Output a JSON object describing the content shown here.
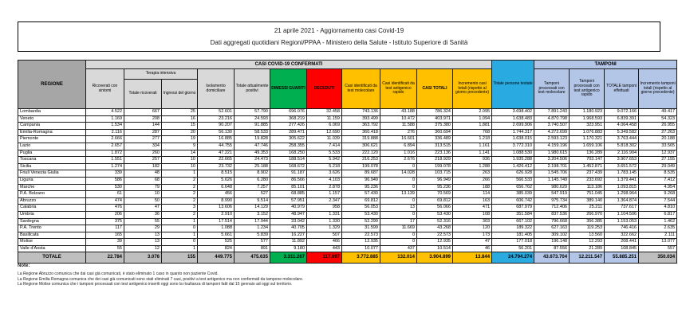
{
  "title": {
    "line1": "21 aprile 2021 - Aggiornamento casi Covid-19",
    "line2": "Dati aggregati quotidiani Regioni/PPAA - Ministero della Salute - Istituto Superiore di Sanità"
  },
  "colors": {
    "green": "#00B050",
    "red": "#FF0000",
    "yellow": "#FFC000",
    "blue": "#29ABE2",
    "periwinkle": "#B4C6E7",
    "header_gray": "#D9D9D9",
    "regione_gray": "#A6A6A6",
    "total_row_gray": "#BFBFBF"
  },
  "table": {
    "headers": {
      "regione": "REGIONE",
      "casi_band": "CASI COVID-19 CONFERMATI",
      "tamponi_band": "TAMPONI",
      "ricoverati": "Ricoverati con sintomi",
      "terapia_band": "Terapia intensiva",
      "terapia_totale": "Totale ricoverati",
      "terapia_ingressi": "Ingressi del giorno",
      "isolamento": "Isolamento domiciliare",
      "positivi": "Totale attualmente positivi",
      "guariti": "DIMESSI GUARITI",
      "deceduti": "DECEDUTI",
      "casi_molecolare": "Casi identificati da test molecolare",
      "casi_antigenico": "Casi identificati da test antigenico rapido",
      "casi_totali": "CASI TOTALI",
      "incremento_casi": "Incremento casi totali (rispetto al giorno precedente)",
      "persone_testate": "Totale persone testate",
      "tamponi_molecolare": "Tamponi processati con test molecolare",
      "tamponi_antigenico": "Tamponi processati con test antigenico rapido",
      "tamponi_totale": "TOTALE tamponi effettuati",
      "incremento_tamponi": "Incremento tamponi totali (rispetto al giorno precedente)"
    },
    "rows": [
      [
        "Lombardia",
        "4.522",
        "667",
        "25",
        "52.601",
        "57.790",
        "696.076",
        "32.458",
        "743.136",
        "43.188",
        "786.324",
        "2.095",
        "3.698.402",
        "7.891.243",
        "1.180.923",
        "9.072.166",
        "49.417"
      ],
      [
        "Veneto",
        "1.169",
        "208",
        "16",
        "23.216",
        "24.593",
        "368.219",
        "11.159",
        "393.499",
        "10.472",
        "403.971",
        "1.094",
        "1.638.483",
        "4.870.798",
        "1.968.593",
        "6.839.391",
        "54.323"
      ],
      [
        "Campania",
        "1.534",
        "144",
        "15",
        "90.207",
        "91.885",
        "277.426",
        "6.069",
        "363.792",
        "11.588",
        "375.380",
        "1.881",
        "2.699.906",
        "3.740.507",
        "323.951",
        "4.064.458",
        "26.955"
      ],
      [
        "Emilia-Romagna",
        "2.116",
        "287",
        "20",
        "56.130",
        "58.533",
        "289.471",
        "12.690",
        "360.418",
        "276",
        "360.694",
        "768",
        "1.744.317",
        "4.272.699",
        "1.076.883",
        "5.349.582",
        "27.263"
      ],
      [
        "Piemonte",
        "2.666",
        "277",
        "19",
        "16.885",
        "19.828",
        "305.622",
        "11.039",
        "319.888",
        "16.601",
        "336.489",
        "1.218",
        "1.638.015",
        "2.593.123",
        "1.170.321",
        "3.763.444",
        "20.188"
      ],
      [
        "Lazio",
        "2.657",
        "334",
        "9",
        "44.755",
        "47.746",
        "258.355",
        "7.414",
        "306.621",
        "6.894",
        "313.515",
        "1.161",
        "3.772.310",
        "4.159.196",
        "1.659.106",
        "5.818.302",
        "33.565"
      ],
      [
        "Puglia",
        "1.872",
        "260",
        "14",
        "47.221",
        "49.353",
        "168.250",
        "5.533",
        "222.120",
        "1.016",
        "223.136",
        "1.141",
        "1.088.530",
        "1.980.615",
        "136.289",
        "2.116.904",
        "12.937"
      ],
      [
        "Toscana",
        "1.551",
        "257",
        "10",
        "22.665",
        "24.473",
        "188.514",
        "5.942",
        "216.253",
        "2.676",
        "218.929",
        "936",
        "1.935.288",
        "3.204.506",
        "703.147",
        "3.907.653",
        "27.155"
      ],
      [
        "Sicilia",
        "1.274",
        "182",
        "10",
        "23.732",
        "25.188",
        "168.672",
        "5.218",
        "199.078",
        "0",
        "199.078",
        "1.288",
        "1.426.412",
        "2.198.701",
        "1.452.871",
        "3.651.572",
        "29.049"
      ],
      [
        "Friuli Venezia Giulia",
        "339",
        "48",
        "1",
        "8.515",
        "8.902",
        "91.187",
        "3.626",
        "89.687",
        "14.028",
        "103.715",
        "263",
        "626.928",
        "1.545.706",
        "237.439",
        "1.783.145",
        "8.535"
      ],
      [
        "Liguria",
        "586",
        "68",
        "2",
        "5.626",
        "6.280",
        "86.566",
        "4.103",
        "96.949",
        "0",
        "96.949",
        "266",
        "566.533",
        "1.145.749",
        "233.692",
        "1.379.441",
        "7.412"
      ],
      [
        "Marche",
        "530",
        "79",
        "2",
        "6.648",
        "7.257",
        "85.101",
        "2.878",
        "95.236",
        "0",
        "95.236",
        "188",
        "656.762",
        "980.629",
        "113.186",
        "1.093.815",
        "4.954"
      ],
      [
        "P.A. Bolzano",
        "61",
        "10",
        "2",
        "456",
        "527",
        "68.885",
        "1.157",
        "57.430",
        "13.139",
        "70.569",
        "114",
        "385.039",
        "547.919",
        "751.045",
        "1.298.964",
        "9.268"
      ],
      [
        "Abruzzo",
        "474",
        "50",
        "2",
        "8.990",
        "9.514",
        "57.951",
        "2.347",
        "69.812",
        "0",
        "69.812",
        "163",
        "606.742",
        "975.734",
        "389.140",
        "1.364.874",
        "7.544"
      ],
      [
        "Calabria",
        "476",
        "47",
        "3",
        "13.606",
        "14.129",
        "40.979",
        "958",
        "56.053",
        "13",
        "56.066",
        "471",
        "687.979",
        "712.406",
        "25.211",
        "737.617",
        "4.810"
      ],
      [
        "Umbria",
        "206",
        "36",
        "2",
        "2.910",
        "3.152",
        "48.947",
        "1.331",
        "53.430",
        "0",
        "53.430",
        "108",
        "351.584",
        "837.536",
        "266.970",
        "1.104.506",
        "6.817"
      ],
      [
        "Sardegna",
        "375",
        "55",
        "1",
        "17.514",
        "17.944",
        "33.042",
        "1.330",
        "52.299",
        "17",
        "52.316",
        "303",
        "667.102",
        "796.668",
        "356.385",
        "1.153.053",
        "1.462"
      ],
      [
        "P.A. Trento",
        "117",
        "29",
        "0",
        "1.088",
        "1.234",
        "40.705",
        "1.329",
        "31.599",
        "11.669",
        "43.268",
        "120",
        "189.322",
        "627.163",
        "119.253",
        "746.416",
        "2.635"
      ],
      [
        "Basilicata",
        "165",
        "13",
        "1",
        "5.661",
        "5.839",
        "16.227",
        "507",
        "22.573",
        "0",
        "22.573",
        "173",
        "181.405",
        "309.102",
        "13.560",
        "322.662",
        "2.111"
      ],
      [
        "Molise",
        "39",
        "13",
        "0",
        "525",
        "577",
        "11.892",
        "466",
        "12.935",
        "0",
        "12.935",
        "47",
        "177.018",
        "196.148",
        "12.293",
        "208.441",
        "13.077"
      ],
      [
        "Valle d'Aosta",
        "55",
        "12",
        "1",
        "824",
        "891",
        "9.180",
        "443",
        "10.077",
        "437",
        "10.514",
        "46",
        "56.201",
        "87.556",
        "21.289",
        "108.845",
        "557"
      ]
    ],
    "total_row": [
      "TOTALE",
      "22.784",
      "3.076",
      "155",
      "449.775",
      "475.635",
      "3.311.267",
      "117.997",
      "3.772.885",
      "132.014",
      "3.904.899",
      "13.844",
      "24.794.274",
      "43.673.704",
      "12.211.547",
      "55.885.251",
      "350.034"
    ]
  },
  "notes": {
    "label": "Note:",
    "items": [
      "La Regione Abruzzo comunica che dai casi già comunicati, è stato eliminato 1 caso in quanto non paziente Covid.",
      "La Regione Emilia Romagna comunica che dei casi già comunicati sono stati eliminati 7 casi, positivi a test antigenico ma non confermati da tampone molecolare.",
      "La Regione Molise comunica che i tamponi processati con test antigenico inseriti oggi sono la risultanza di tamponi fatti dal 15 gennaio ad oggi sul territorio."
    ]
  }
}
